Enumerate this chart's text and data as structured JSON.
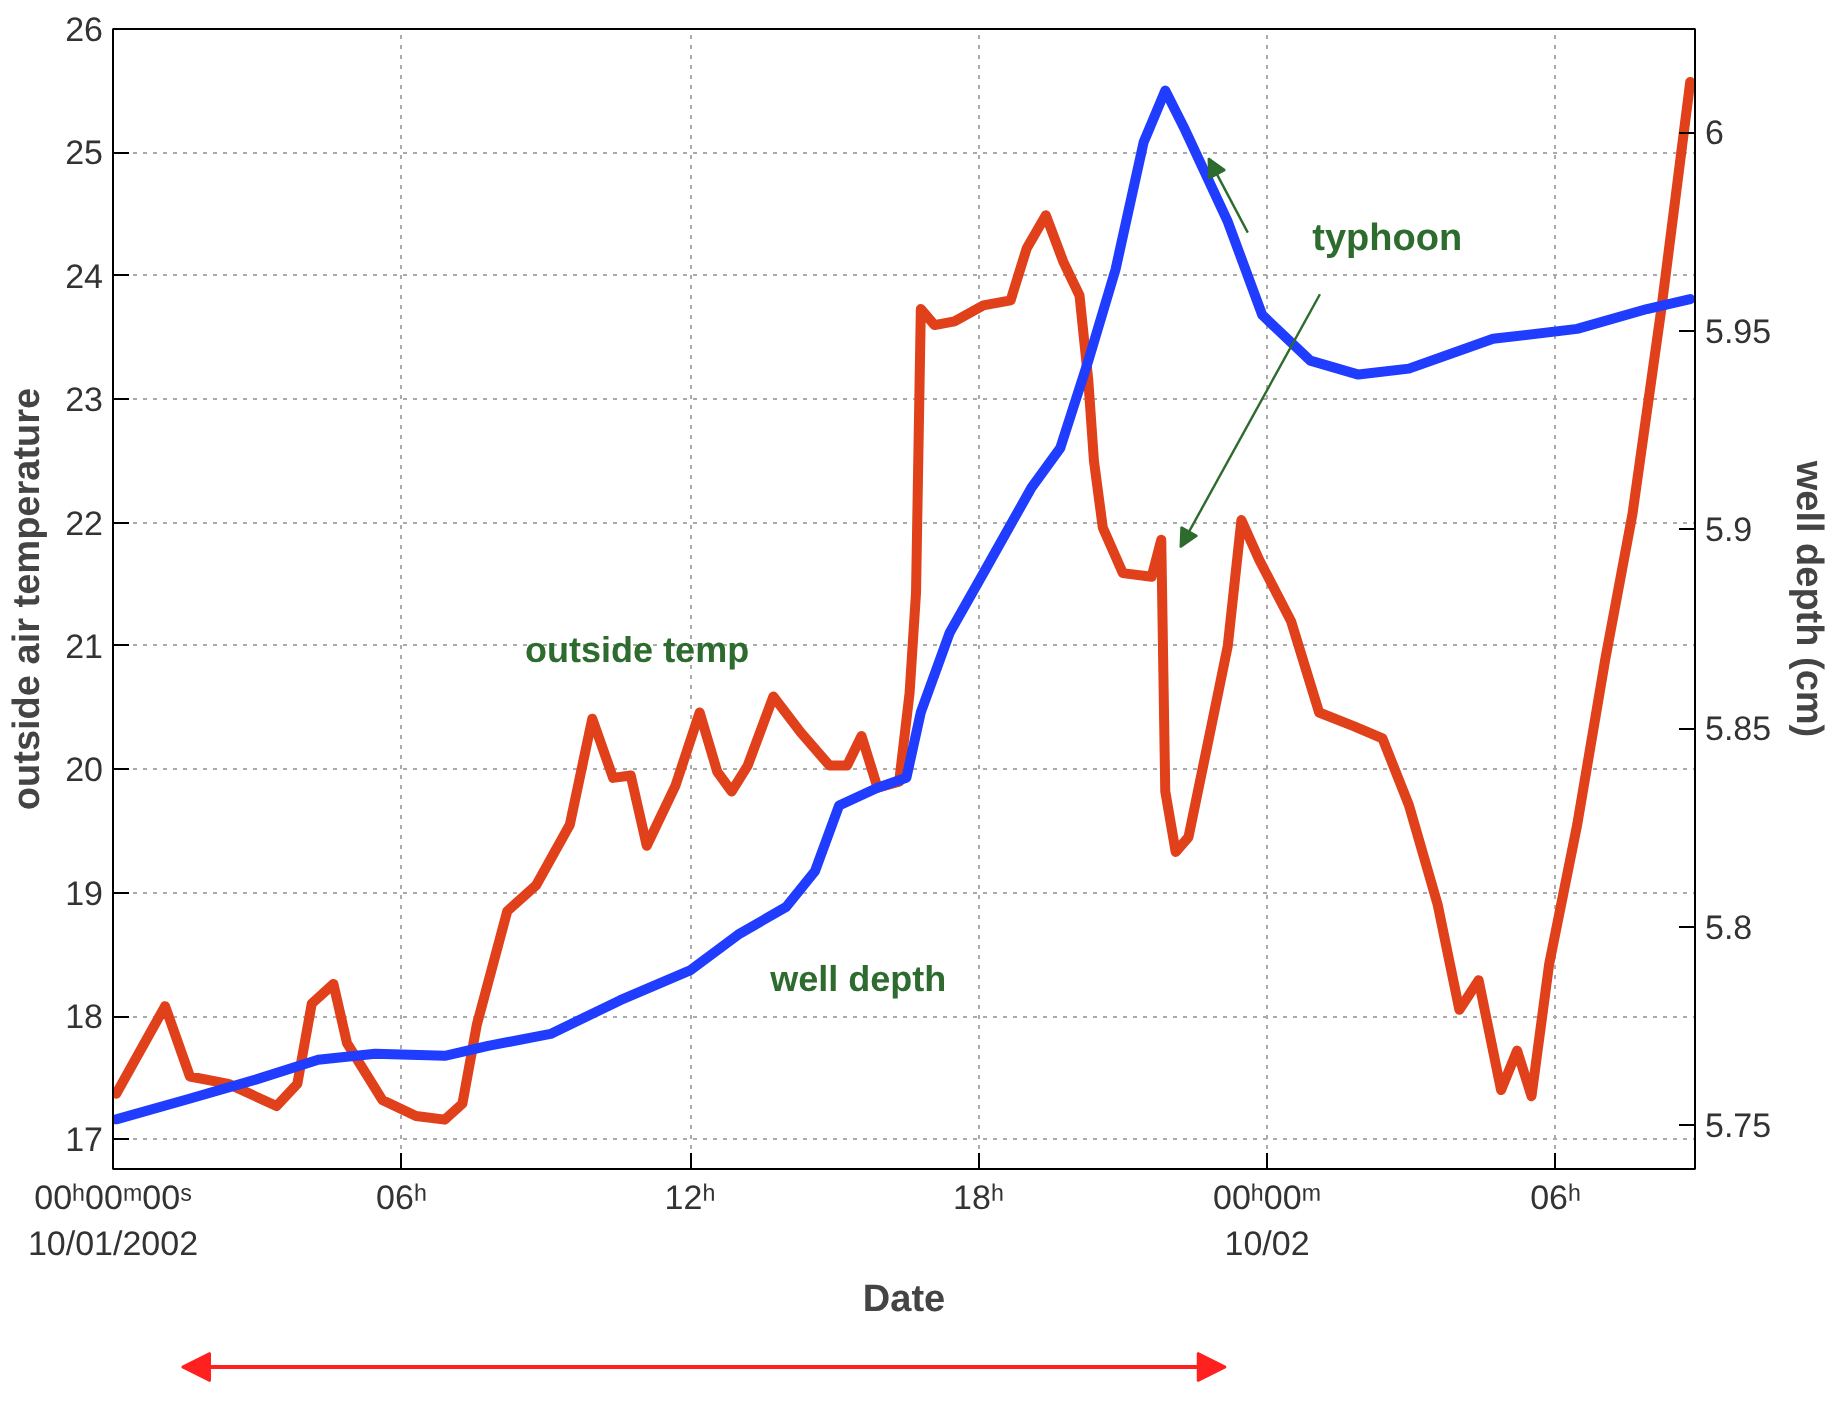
{
  "chart_data": {
    "type": "line",
    "xlabel": "Date",
    "ylabel": "outside air temperature",
    "y2label": "well depth (cm)",
    "xlim": [
      "2002-10-01T00:00",
      "2002-10-02T08:54"
    ],
    "ylim": [
      16.76,
      26
    ],
    "y2lim": [
      5.739,
      6.026
    ],
    "xticks": [
      {
        "value": "2002-10-01T00:00",
        "label": "00ʰ00ᵐ00ˢ\n10/01/2002"
      },
      {
        "value": "2002-10-01T06:00",
        "label": "06ʰ"
      },
      {
        "value": "2002-10-01T12:00",
        "label": "12ʰ"
      },
      {
        "value": "2002-10-01T18:00",
        "label": "18ʰ"
      },
      {
        "value": "2002-10-02T00:00",
        "label": "00ʰ00ᵐ\n10/02"
      },
      {
        "value": "2002-10-02T06:00",
        "label": "06ʰ"
      }
    ],
    "yticks": [
      17,
      18,
      19,
      20,
      21,
      22,
      23,
      24,
      25,
      26
    ],
    "y2ticks": [
      5.75,
      5.8,
      5.85,
      5.9,
      5.95,
      6
    ],
    "grid": true,
    "legend": false,
    "marker": "none",
    "line_style": "solid",
    "series": [
      {
        "name": "outside temp",
        "color": "#e0401a",
        "x": [
          "2002-10-01T00:04",
          "2002-10-01T01:05",
          "2002-10-01T01:36",
          "2002-10-01T02:24",
          "2002-10-01T03:24",
          "2002-10-01T03:50",
          "2002-10-01T04:08",
          "2002-10-01T04:35",
          "2002-10-01T04:52",
          "2002-10-01T05:36",
          "2002-10-01T06:18",
          "2002-10-01T06:54",
          "2002-10-01T07:16",
          "2002-10-01T07:34",
          "2002-10-01T08:12",
          "2002-10-01T08:48",
          "2002-10-01T09:30",
          "2002-10-01T09:58",
          "2002-10-01T10:24",
          "2002-10-01T10:46",
          "2002-10-01T11:06",
          "2002-10-01T11:42",
          "2002-10-01T12:12",
          "2002-10-01T12:34",
          "2002-10-01T12:52",
          "2002-10-01T13:12",
          "2002-10-01T13:44",
          "2002-10-01T14:18",
          "2002-10-01T14:54",
          "2002-10-01T15:16",
          "2002-10-01T15:34",
          "2002-10-01T15:54",
          "2002-10-01T16:21",
          "2002-10-01T16:34",
          "2002-10-01T16:42",
          "2002-10-01T16:48",
          "2002-10-01T17:05",
          "2002-10-01T17:30",
          "2002-10-01T18:06",
          "2002-10-01T18:40",
          "2002-10-01T19:00",
          "2002-10-01T19:24",
          "2002-10-01T19:46",
          "2002-10-01T20:06",
          "2002-10-01T20:17",
          "2002-10-01T20:24",
          "2002-10-01T20:35",
          "2002-10-01T21:00",
          "2002-10-01T21:36",
          "2002-10-01T21:48",
          "2002-10-01T21:53",
          "2002-10-01T22:06",
          "2002-10-01T22:22",
          "2002-10-01T22:54",
          "2002-10-01T23:11",
          "2002-10-01T23:28",
          "2002-10-01T23:50",
          "2002-10-02T00:30",
          "2002-10-02T01:05",
          "2002-10-02T01:48",
          "2002-10-02T02:24",
          "2002-10-02T02:57",
          "2002-10-02T03:33",
          "2002-10-02T04:00",
          "2002-10-02T04:24",
          "2002-10-02T04:52",
          "2002-10-02T05:12",
          "2002-10-02T05:30",
          "2002-10-02T05:52",
          "2002-10-02T06:27",
          "2002-10-02T07:02",
          "2002-10-02T07:36",
          "2002-10-02T08:12",
          "2002-10-02T08:48"
        ],
        "values": [
          17.37,
          18.08,
          17.51,
          17.45,
          17.27,
          17.45,
          18.1,
          18.26,
          17.78,
          17.32,
          17.19,
          17.16,
          17.29,
          17.93,
          18.85,
          19.06,
          19.55,
          20.41,
          19.93,
          19.95,
          19.38,
          19.87,
          20.46,
          19.98,
          19.82,
          20.03,
          20.59,
          20.3,
          20.03,
          20.03,
          20.27,
          19.85,
          19.9,
          20.62,
          21.43,
          23.73,
          23.6,
          23.63,
          23.76,
          23.8,
          24.22,
          24.49,
          24.11,
          23.84,
          23.15,
          22.5,
          21.96,
          21.59,
          21.56,
          21.86,
          19.82,
          19.33,
          19.45,
          20.46,
          21.0,
          22.02,
          21.7,
          21.2,
          20.46,
          20.35,
          20.25,
          19.71,
          18.9,
          18.05,
          18.29,
          17.4,
          17.72,
          17.35,
          18.42,
          19.55,
          20.89,
          22.07,
          23.73,
          25.57
        ]
      },
      {
        "name": "well depth",
        "color": "#1f3cff",
        "axis": "y2",
        "x": [
          "2002-10-01T00:04",
          "2002-10-01T01:32",
          "2002-10-01T02:58",
          "2002-10-01T04:16",
          "2002-10-01T05:27",
          "2002-10-01T06:54",
          "2002-10-01T07:48",
          "2002-10-01T09:06",
          "2002-10-01T10:33",
          "2002-10-01T12:00",
          "2002-10-01T13:00",
          "2002-10-01T14:00",
          "2002-10-01T14:36",
          "2002-10-01T15:06",
          "2002-10-01T15:54",
          "2002-10-01T16:30",
          "2002-10-01T16:48",
          "2002-10-01T17:24",
          "2002-10-01T18:06",
          "2002-10-01T19:06",
          "2002-10-01T19:42",
          "2002-10-01T20:17",
          "2002-10-01T20:51",
          "2002-10-01T21:26",
          "2002-10-01T21:53",
          "2002-10-01T22:18",
          "2002-10-01T23:11",
          "2002-10-01T23:54",
          "2002-10-02T00:54",
          "2002-10-02T01:54",
          "2002-10-02T02:57",
          "2002-10-02T04:42",
          "2002-10-02T06:27",
          "2002-10-02T07:54",
          "2002-10-02T08:48"
        ],
        "values": [
          5.7515,
          5.7565,
          5.7615,
          5.7665,
          5.768,
          5.7675,
          5.77,
          5.773,
          5.7815,
          5.789,
          5.798,
          5.805,
          5.814,
          5.8305,
          5.835,
          5.8375,
          5.854,
          5.874,
          5.889,
          5.9105,
          5.9205,
          5.9425,
          5.9655,
          5.9975,
          6.0105,
          6.0005,
          5.9775,
          5.954,
          5.9425,
          5.939,
          5.9405,
          5.948,
          5.9505,
          5.9555,
          5.958
        ]
      }
    ],
    "annotations": [
      "typhoon"
    ]
  }
}
